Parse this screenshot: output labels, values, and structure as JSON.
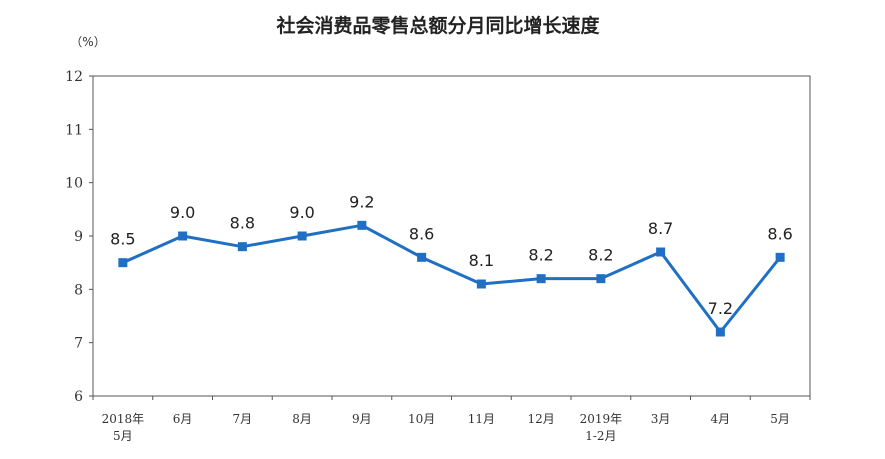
{
  "chart_data": {
    "type": "line",
    "title": "社会消费品零售总额分月同比增长速度",
    "unit_label": "（%）",
    "categories": [
      [
        "2018年",
        "5月"
      ],
      [
        "6月"
      ],
      [
        "7月"
      ],
      [
        "8月"
      ],
      [
        "9月"
      ],
      [
        "10月"
      ],
      [
        "11月"
      ],
      [
        "12月"
      ],
      [
        "2019年",
        "1-2月"
      ],
      [
        "3月"
      ],
      [
        "4月"
      ],
      [
        "5月"
      ]
    ],
    "values": [
      8.5,
      9.0,
      8.8,
      9.0,
      9.2,
      8.6,
      8.1,
      8.2,
      8.2,
      8.7,
      7.2,
      8.6
    ],
    "value_labels": [
      "8.5",
      "9.0",
      "8.8",
      "9.0",
      "9.2",
      "8.6",
      "8.1",
      "8.2",
      "8.2",
      "8.7",
      "7.2",
      "8.6"
    ],
    "ylim": [
      6,
      12
    ],
    "yticks": [
      "6",
      "7",
      "8",
      "9",
      "10",
      "11",
      "12"
    ],
    "grid": false,
    "legend": "none",
    "colors": {
      "line": "#1f6fc5",
      "marker": "#1f6fc5",
      "axis": "#555555"
    }
  }
}
